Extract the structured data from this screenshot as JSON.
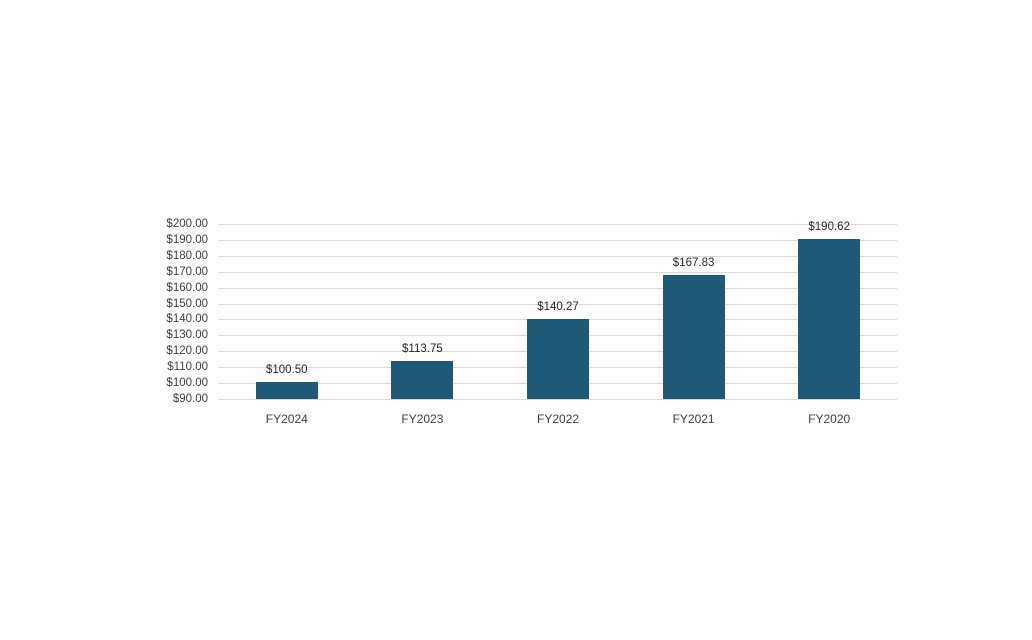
{
  "chart_data": {
    "type": "bar",
    "title": "",
    "xlabel": "",
    "ylabel": "",
    "categories": [
      "FY2024",
      "FY2023",
      "FY2022",
      "FY2021",
      "FY2020"
    ],
    "values": [
      100.5,
      113.75,
      140.27,
      167.83,
      190.62
    ],
    "data_labels": [
      "$100.50",
      "$113.75",
      "$140.27",
      "$167.83",
      "$190.62"
    ],
    "ylim": [
      90,
      200
    ],
    "ytick_step": 10,
    "ytick_labels": [
      "$200.00",
      "$190.00",
      "$180.00",
      "$170.00",
      "$160.00",
      "$150.00",
      "$140.00",
      "$130.00",
      "$120.00",
      "$110.00",
      "$100.00",
      "$90.00"
    ],
    "grid": true,
    "legend": "none",
    "colors": {
      "bar": "#1e5a78",
      "gridline": "#d9d9d9",
      "axis_label": "#404040",
      "data_label": "#262626",
      "background": "#ffffff"
    }
  }
}
